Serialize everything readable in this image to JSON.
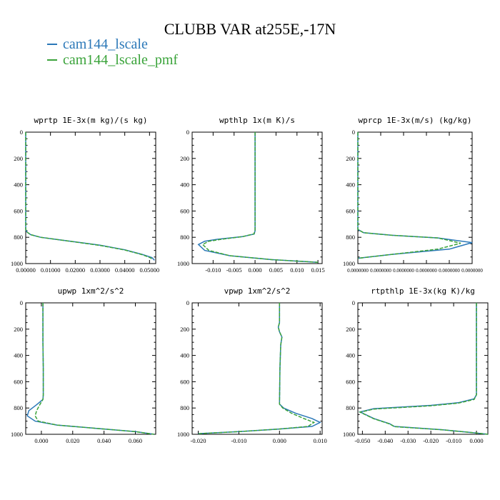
{
  "title": "CLUBB VAR at255E,-17N",
  "legend": [
    {
      "label": "cam144_lscale",
      "color": "#2b78b8"
    },
    {
      "label": "cam144_lscale_pmf",
      "color": "#3aa33a"
    }
  ],
  "chart_data": [
    {
      "type": "line",
      "title": "wprtp  1E-3x(m kg)/(s kg)",
      "xlim": [
        0,
        0.0525
      ],
      "ylim": [
        1000,
        0
      ],
      "xticks": [
        0,
        0.01,
        0.02,
        0.03,
        0.04,
        0.05
      ],
      "xticklabels": [
        "0.00000",
        "0.01000",
        "0.02000",
        "0.03000",
        "0.04000",
        "0.05000"
      ],
      "yticks": [
        0,
        200,
        400,
        600,
        800,
        1000
      ],
      "series": [
        {
          "name": "cam144_lscale",
          "x": [
            0,
            0,
            0,
            0.0005,
            0.002,
            0.006,
            0.012,
            0.02,
            0.03,
            0.04,
            0.047,
            0.051,
            0.052
          ],
          "y": [
            0,
            500,
            740,
            760,
            780,
            800,
            815,
            835,
            860,
            895,
            930,
            955,
            975
          ]
        },
        {
          "name": "cam144_lscale_pmf",
          "x": [
            0,
            0,
            0,
            0.0005,
            0.002,
            0.006,
            0.012,
            0.02,
            0.03,
            0.04,
            0.047,
            0.0505,
            0.051
          ],
          "y": [
            0,
            500,
            740,
            760,
            780,
            800,
            815,
            836,
            862,
            897,
            932,
            957,
            972
          ]
        }
      ]
    },
    {
      "type": "line",
      "title": "wpthlp  1x(m K)/s",
      "xlim": [
        -0.015,
        0.016
      ],
      "ylim": [
        1000,
        0
      ],
      "xticks": [
        -0.01,
        -0.005,
        0,
        0.005,
        0.01,
        0.015
      ],
      "xticklabels": [
        "-0.010",
        "-0.005",
        "0.000",
        "0.005",
        "0.010",
        "0.015"
      ],
      "yticks": [
        0,
        200,
        400,
        600,
        800,
        1000
      ],
      "series": [
        {
          "name": "cam144_lscale",
          "x": [
            0,
            0,
            0,
            -0.0002,
            -0.003,
            -0.009,
            -0.012,
            -0.0135,
            -0.012,
            -0.006,
            0.004,
            0.015
          ],
          "y": [
            0,
            500,
            750,
            775,
            795,
            815,
            830,
            855,
            900,
            940,
            970,
            990
          ]
        },
        {
          "name": "cam144_lscale_pmf",
          "x": [
            0,
            0,
            0,
            -0.0003,
            -0.003,
            -0.008,
            -0.011,
            -0.0125,
            -0.011,
            -0.006,
            0.004,
            0.015
          ],
          "y": [
            0,
            500,
            750,
            775,
            795,
            815,
            830,
            855,
            900,
            940,
            970,
            990
          ]
        }
      ]
    },
    {
      "type": "line",
      "title": "wprcp  1E-3x(m/s) (kg/kg)",
      "xlim": [
        0,
        1e-07
      ],
      "ylim": [
        1000,
        0
      ],
      "xticks": [
        0,
        2e-08,
        4e-08,
        6e-08,
        8e-08,
        1e-07
      ],
      "xticklabels": [
        "0.0000000",
        "0.0000000",
        "0.0000000",
        "0.0000000",
        "0.0000000",
        "0.0000000"
      ],
      "yticks": [
        0,
        200,
        400,
        600,
        800,
        1000
      ],
      "series": [
        {
          "name": "cam144_lscale",
          "x": [
            0,
            0,
            0,
            5e-09,
            3e-08,
            7e-08,
            1e-07,
            8e-08,
            3e-08,
            0
          ],
          "y": [
            0,
            500,
            740,
            765,
            785,
            805,
            840,
            890,
            930,
            960
          ]
        },
        {
          "name": "cam144_lscale_pmf",
          "x": [
            0,
            0,
            0,
            5e-09,
            3e-08,
            7e-08,
            9e-08,
            7e-08,
            3e-08,
            0
          ],
          "y": [
            0,
            500,
            740,
            765,
            785,
            805,
            845,
            890,
            930,
            960
          ]
        }
      ]
    },
    {
      "type": "line",
      "title": "upwp  1xm^2/s^2",
      "xlim": [
        -0.01,
        0.073
      ],
      "ylim": [
        1000,
        0
      ],
      "xticks": [
        0,
        0.02,
        0.04,
        0.06
      ],
      "xticklabels": [
        "0.000",
        "0.020",
        "0.040",
        "0.060"
      ],
      "yticks": [
        0,
        200,
        400,
        600,
        800,
        1000
      ],
      "series": [
        {
          "name": "cam144_lscale",
          "x": [
            0.001,
            0.001,
            0.0012,
            0.0012,
            0.001,
            -0.003,
            -0.008,
            -0.009,
            -0.004,
            0.01,
            0.035,
            0.06,
            0.072
          ],
          "y": [
            0,
            300,
            500,
            700,
            735,
            775,
            820,
            860,
            900,
            930,
            955,
            980,
            1000
          ]
        },
        {
          "name": "cam144_lscale_pmf",
          "x": [
            0.001,
            0.001,
            0.0012,
            0.0012,
            0.001,
            -0.001,
            -0.003,
            -0.004,
            -0.002,
            0.01,
            0.035,
            0.06,
            0.072
          ],
          "y": [
            0,
            300,
            500,
            700,
            735,
            775,
            820,
            860,
            900,
            930,
            955,
            980,
            1000
          ]
        }
      ]
    },
    {
      "type": "line",
      "title": "vpwp  1xm^2/s^2",
      "xlim": [
        -0.0215,
        0.0105
      ],
      "ylim": [
        1000,
        0
      ],
      "xticks": [
        -0.02,
        -0.01,
        0,
        0.01
      ],
      "xticklabels": [
        "-0.020",
        "-0.010",
        "0.000",
        "0.010"
      ],
      "yticks": [
        0,
        200,
        400,
        600,
        800,
        1000
      ],
      "series": [
        {
          "name": "cam144_lscale",
          "x": [
            0,
            0,
            -0.0003,
            0,
            0.0006,
            0.0003,
            0.0001,
            0,
            0.001,
            0.004,
            0.008,
            0.01,
            0.008,
            0,
            -0.01,
            -0.02
          ],
          "y": [
            0,
            150,
            185,
            220,
            260,
            320,
            500,
            770,
            800,
            840,
            880,
            910,
            940,
            960,
            980,
            995
          ]
        },
        {
          "name": "cam144_lscale_pmf",
          "x": [
            0,
            0,
            -0.0003,
            0,
            0.0006,
            0.0003,
            0.0001,
            0,
            0.0008,
            0.003,
            0.006,
            0.0085,
            0.007,
            0,
            -0.01,
            -0.02
          ],
          "y": [
            0,
            150,
            185,
            220,
            260,
            320,
            500,
            770,
            800,
            840,
            880,
            910,
            940,
            960,
            980,
            995
          ]
        }
      ]
    },
    {
      "type": "line",
      "title": "rtpthlp  1E-3x(kg K)/kg",
      "xlim": [
        -0.052,
        0.005
      ],
      "ylim": [
        1000,
        0
      ],
      "xticks": [
        -0.05,
        -0.04,
        -0.03,
        -0.02,
        -0.01,
        0
      ],
      "xticklabels": [
        "-0.050",
        "-0.040",
        "-0.030",
        "-0.020",
        "-0.010",
        "0.000"
      ],
      "yticks": [
        0,
        200,
        400,
        600,
        800,
        1000
      ],
      "series": [
        {
          "name": "cam144_lscale",
          "x": [
            0,
            0,
            0,
            -0.001,
            -0.008,
            -0.02,
            -0.045,
            -0.051,
            -0.045,
            -0.038,
            -0.036,
            -0.015,
            0,
            0.005
          ],
          "y": [
            0,
            400,
            700,
            730,
            760,
            780,
            805,
            830,
            880,
            920,
            940,
            965,
            990,
            1000
          ]
        },
        {
          "name": "cam144_lscale_pmf",
          "x": [
            0,
            0,
            0,
            -0.001,
            -0.008,
            -0.02,
            -0.045,
            -0.051,
            -0.045,
            -0.038,
            -0.036,
            -0.015,
            0,
            0.005
          ],
          "y": [
            0,
            400,
            700,
            735,
            763,
            783,
            808,
            832,
            882,
            922,
            942,
            966,
            990,
            1000
          ]
        }
      ]
    }
  ]
}
